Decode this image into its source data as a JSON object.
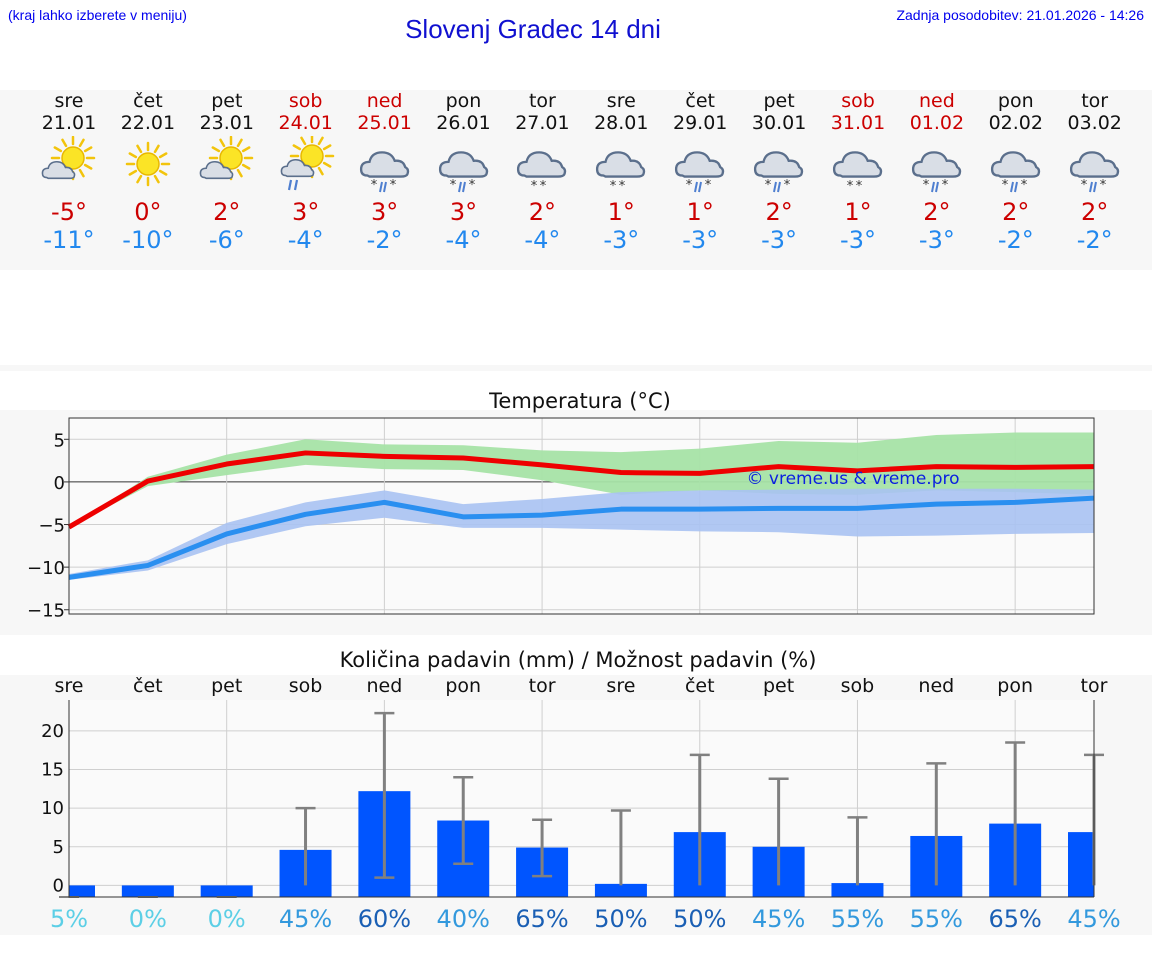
{
  "header": {
    "menu_hint": "(kraj lahko izberete v meniju)",
    "title": "Slovenj Gradec 14 dni",
    "updated": "Zadnja posodobitev: 21.01.2026 - 14:26"
  },
  "days": [
    {
      "name": "sre",
      "date": "21.01",
      "weekend": false,
      "icon": "sun-cloud-icon",
      "tmax": "-5°",
      "tmin": "-11°"
    },
    {
      "name": "čet",
      "date": "22.01",
      "weekend": false,
      "icon": "sun-icon",
      "tmax": "0°",
      "tmin": "-10°"
    },
    {
      "name": "pet",
      "date": "23.01",
      "weekend": false,
      "icon": "sun-cloud-icon",
      "tmax": "2°",
      "tmin": "-6°"
    },
    {
      "name": "sob",
      "date": "24.01",
      "weekend": true,
      "icon": "sun-cloud-rain-icon",
      "tmax": "3°",
      "tmin": "-4°"
    },
    {
      "name": "ned",
      "date": "25.01",
      "weekend": true,
      "icon": "cloud-sleet-icon",
      "tmax": "3°",
      "tmin": "-2°"
    },
    {
      "name": "pon",
      "date": "26.01",
      "weekend": false,
      "icon": "cloud-sleet-icon",
      "tmax": "3°",
      "tmin": "-4°"
    },
    {
      "name": "tor",
      "date": "27.01",
      "weekend": false,
      "icon": "cloud-snow-icon",
      "tmax": "2°",
      "tmin": "-4°"
    },
    {
      "name": "sre",
      "date": "28.01",
      "weekend": false,
      "icon": "cloud-snow-icon",
      "tmax": "1°",
      "tmin": "-3°"
    },
    {
      "name": "čet",
      "date": "29.01",
      "weekend": false,
      "icon": "cloud-sleet-icon",
      "tmax": "1°",
      "tmin": "-3°"
    },
    {
      "name": "pet",
      "date": "30.01",
      "weekend": false,
      "icon": "cloud-sleet-icon",
      "tmax": "2°",
      "tmin": "-3°"
    },
    {
      "name": "sob",
      "date": "31.01",
      "weekend": true,
      "icon": "cloud-snow-icon",
      "tmax": "1°",
      "tmin": "-3°"
    },
    {
      "name": "ned",
      "date": "01.02",
      "weekend": true,
      "icon": "cloud-sleet-icon",
      "tmax": "2°",
      "tmin": "-3°"
    },
    {
      "name": "pon",
      "date": "02.02",
      "weekend": false,
      "icon": "cloud-sleet-icon",
      "tmax": "2°",
      "tmin": "-2°"
    },
    {
      "name": "tor",
      "date": "03.02",
      "weekend": false,
      "icon": "cloud-sleet-icon",
      "tmax": "2°",
      "tmin": "-2°"
    }
  ],
  "colors": {
    "max_line": "#ee0000",
    "max_band": "#a6e3a6",
    "min_line": "#2a8ff0",
    "min_band": "#a9c2f2",
    "bar": "#0055ff",
    "whisker": "#808080",
    "weekend_text": "#cc0000",
    "title_text": "#1010d0",
    "pct_low": "#5ccfe6",
    "pct_mid": "#3399dd",
    "pct_high": "#1a5fb4"
  },
  "chart_data": [
    {
      "type": "line",
      "title": "Temperatura (°C)",
      "ylabel": "°C",
      "ylim": [
        -15.5,
        7.5
      ],
      "yticks": [
        5,
        0,
        -5,
        -10,
        -15
      ],
      "ytick_labels": [
        "5",
        "0",
        "−5",
        "−10",
        "−15"
      ],
      "grid": true,
      "x": [
        0,
        1,
        2,
        3,
        4,
        5,
        6,
        7,
        8,
        9,
        10,
        11,
        12,
        13
      ],
      "series": [
        {
          "name": "max",
          "values": [
            -5.3,
            0.1,
            2.1,
            3.4,
            3.0,
            2.8,
            2.0,
            1.1,
            1.0,
            1.8,
            1.3,
            1.8,
            1.7,
            1.8
          ],
          "band_low": [
            -5.3,
            -0.5,
            0.8,
            2.0,
            1.5,
            1.4,
            0.2,
            -1.5,
            -1.0,
            -1.4,
            -1.5,
            -1.0,
            -1.2,
            -1.5
          ],
          "band_high": [
            -5.3,
            0.6,
            3.2,
            5.0,
            4.4,
            4.3,
            3.7,
            3.5,
            3.9,
            4.8,
            4.6,
            5.5,
            5.8,
            5.8
          ]
        },
        {
          "name": "min",
          "values": [
            -11.2,
            -9.8,
            -6.1,
            -3.8,
            -2.4,
            -4.1,
            -3.9,
            -3.2,
            -3.2,
            -3.1,
            -3.1,
            -2.6,
            -2.4,
            -1.9
          ],
          "band_low": [
            -11.5,
            -10.4,
            -7.3,
            -5.2,
            -4.2,
            -5.4,
            -5.4,
            -5.6,
            -5.8,
            -5.9,
            -6.4,
            -6.3,
            -6.1,
            -6.0
          ],
          "band_high": [
            -10.8,
            -9.2,
            -4.8,
            -2.4,
            -1.0,
            -2.6,
            -2.0,
            -1.2,
            -1.0,
            -0.9,
            -0.8,
            -0.8,
            -0.8,
            -0.9
          ]
        }
      ],
      "annotation": "© vreme.us & vreme.pro"
    },
    {
      "type": "bar",
      "title": "Količina padavin (mm) / Možnost padavin (%)",
      "categories": [
        "sre",
        "čet",
        "pet",
        "sob",
        "ned",
        "pon",
        "tor",
        "sre",
        "čet",
        "pet",
        "sob",
        "ned",
        "pon",
        "tor"
      ],
      "ylim": [
        -1.5,
        24
      ],
      "yticks": [
        0,
        5,
        10,
        15,
        20
      ],
      "grid": true,
      "values": [
        0.0,
        0.0,
        0.0,
        4.6,
        12.2,
        8.4,
        4.9,
        0.2,
        6.9,
        5.0,
        0.3,
        6.4,
        8.0,
        6.9
      ],
      "err_low": [
        0,
        0,
        0,
        0,
        1.0,
        2.8,
        1.2,
        0,
        0,
        0,
        0,
        0,
        0,
        0
      ],
      "err_high": [
        0,
        0,
        0,
        10.0,
        22.3,
        14.0,
        8.5,
        9.7,
        16.9,
        13.8,
        8.8,
        15.8,
        18.5,
        16.9
      ],
      "probability": [
        "5%",
        "0%",
        "0%",
        "45%",
        "60%",
        "40%",
        "65%",
        "50%",
        "50%",
        "45%",
        "55%",
        "55%",
        "65%",
        "45%"
      ],
      "probability_values": [
        5,
        0,
        0,
        45,
        60,
        40,
        65,
        50,
        50,
        45,
        55,
        55,
        65,
        45
      ]
    }
  ]
}
